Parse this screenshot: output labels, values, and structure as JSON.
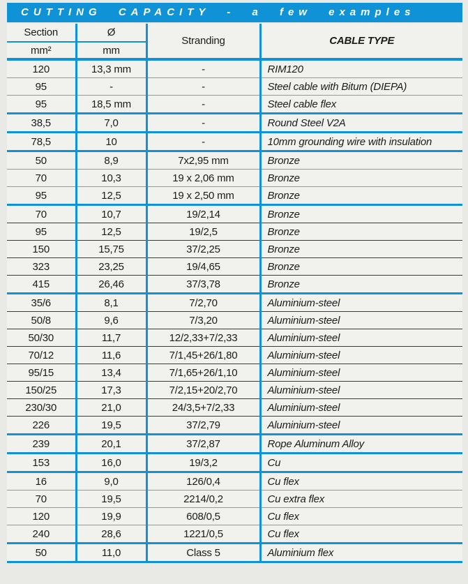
{
  "title": "CUTTING CAPACITY - a few examples",
  "colors": {
    "accent_blue": "#0f93d6",
    "line_gray": "#989894",
    "line_dark": "#3b3b3b",
    "page_bg": "#e9e9e6",
    "cell_bg": "#f1f1ee",
    "title_text": "#ffffff"
  },
  "table": {
    "header": {
      "col1_top": "Section",
      "col1_unit": "mm²",
      "col2_top": "Ø",
      "col2_unit": "mm",
      "col3": "Stranding",
      "col4": "CABLE TYPE"
    },
    "rows": [
      {
        "section": "120",
        "diameter": "13,3 mm",
        "stranding": "-",
        "cable_type": "RIM120",
        "sep": "gray"
      },
      {
        "section": "95",
        "diameter": "-",
        "stranding": "-",
        "cable_type": "Steel cable with Bitum (DIEPA)",
        "sep": "gray"
      },
      {
        "section": "95",
        "diameter": "18,5 mm",
        "stranding": "-",
        "cable_type": "Steel cable flex",
        "sep": "blue"
      },
      {
        "section": "38,5",
        "diameter": "7,0",
        "stranding": "-",
        "cable_type": "Round Steel V2A",
        "sep": "blue"
      },
      {
        "section": "78,5",
        "diameter": "10",
        "stranding": "-",
        "cable_type": "10mm grounding wire with insulation",
        "sep": "blue"
      },
      {
        "section": "50",
        "diameter": "8,9",
        "stranding": "7x2,95 mm",
        "cable_type": "Bronze",
        "sep": "gray"
      },
      {
        "section": "70",
        "diameter": "10,3",
        "stranding": "19 x 2,06 mm",
        "cable_type": "Bronze",
        "sep": "gray"
      },
      {
        "section": "95",
        "diameter": "12,5",
        "stranding": "19 x 2,50 mm",
        "cable_type": "Bronze",
        "sep": "blue"
      },
      {
        "section": "70",
        "diameter": "10,7",
        "stranding": "19/2,14",
        "cable_type": "Bronze",
        "sep": "dark"
      },
      {
        "section": "95",
        "diameter": "12,5",
        "stranding": "19/2,5",
        "cable_type": "Bronze",
        "sep": "dark"
      },
      {
        "section": "150",
        "diameter": "15,75",
        "stranding": "37/2,25",
        "cable_type": "Bronze",
        "sep": "dark"
      },
      {
        "section": "323",
        "diameter": "23,25",
        "stranding": "19/4,65",
        "cable_type": "Bronze",
        "sep": "dark"
      },
      {
        "section": "415",
        "diameter": "26,46",
        "stranding": "37/3,78",
        "cable_type": "Bronze",
        "sep": "blue"
      },
      {
        "section": "35/6",
        "diameter": "8,1",
        "stranding": "7/2,70",
        "cable_type": "Aluminium-steel",
        "sep": "dark"
      },
      {
        "section": "50/8",
        "diameter": "9,6",
        "stranding": "7/3,20",
        "cable_type": "Aluminium-steel",
        "sep": "dark"
      },
      {
        "section": "50/30",
        "diameter": "11,7",
        "stranding": "12/2,33+7/2,33",
        "cable_type": "Aluminium-steel",
        "sep": "dark"
      },
      {
        "section": "70/12",
        "diameter": "11,6",
        "stranding": "7/1,45+26/1,80",
        "cable_type": "Aluminium-steel",
        "sep": "dark"
      },
      {
        "section": "95/15",
        "diameter": "13,4",
        "stranding": "7/1,65+26/1,10",
        "cable_type": "Aluminium-steel",
        "sep": "dark"
      },
      {
        "section": "150/25",
        "diameter": "17,3",
        "stranding": "7/2,15+20/2,70",
        "cable_type": "Aluminium-steel",
        "sep": "dark"
      },
      {
        "section": "230/30",
        "diameter": "21,0",
        "stranding": "24/3,5+7/2,33",
        "cable_type": "Aluminium-steel",
        "sep": "dark"
      },
      {
        "section": "226",
        "diameter": "19,5",
        "stranding": "37/2,79",
        "cable_type": "Aluminium-steel",
        "sep": "blue"
      },
      {
        "section": "239",
        "diameter": "20,1",
        "stranding": "37/2,87",
        "cable_type": "Rope Aluminum Alloy",
        "sep": "blue"
      },
      {
        "section": "153",
        "diameter": "16,0",
        "stranding": "19/3,2",
        "cable_type": "Cu",
        "sep": "blue"
      },
      {
        "section": "16",
        "diameter": "9,0",
        "stranding": "126/0,4",
        "cable_type": "Cu flex",
        "sep": "gray"
      },
      {
        "section": "70",
        "diameter": "19,5",
        "stranding": "2214/0,2",
        "cable_type": "Cu extra flex",
        "sep": "gray"
      },
      {
        "section": "120",
        "diameter": "19,9",
        "stranding": "608/0,5",
        "cable_type": "Cu flex",
        "sep": "gray"
      },
      {
        "section": "240",
        "diameter": "28,6",
        "stranding": "1221/0,5",
        "cable_type": "Cu flex",
        "sep": "blue"
      },
      {
        "section": "50",
        "diameter": "11,0",
        "stranding": "Class 5",
        "cable_type": "Aluminium flex",
        "sep": "blue"
      }
    ]
  }
}
